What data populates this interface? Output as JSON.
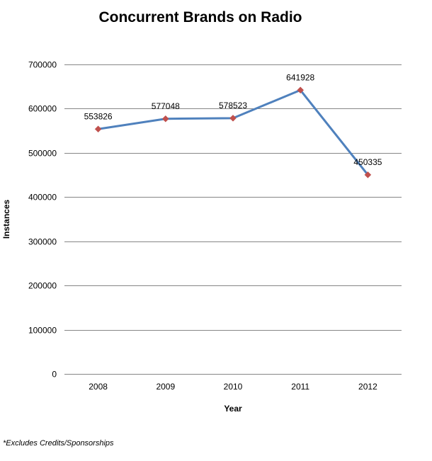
{
  "chart_data": {
    "type": "line",
    "title": "Concurrent Brands on Radio",
    "xlabel": "Year",
    "ylabel": "Instances",
    "categories": [
      "2008",
      "2009",
      "2010",
      "2011",
      "2012"
    ],
    "series": [
      {
        "values": [
          553826,
          577048,
          578523,
          641928,
          450335
        ],
        "color": "#4f81bd",
        "marker_color": "#c0504d"
      }
    ],
    "ylim": [
      0,
      700000
    ],
    "yticks": [
      0,
      100000,
      200000,
      300000,
      400000,
      500000,
      600000,
      700000
    ],
    "grid": true,
    "legend": "none",
    "data_labels": true
  },
  "footnote": "*Excludes Credits/Sponsorships"
}
